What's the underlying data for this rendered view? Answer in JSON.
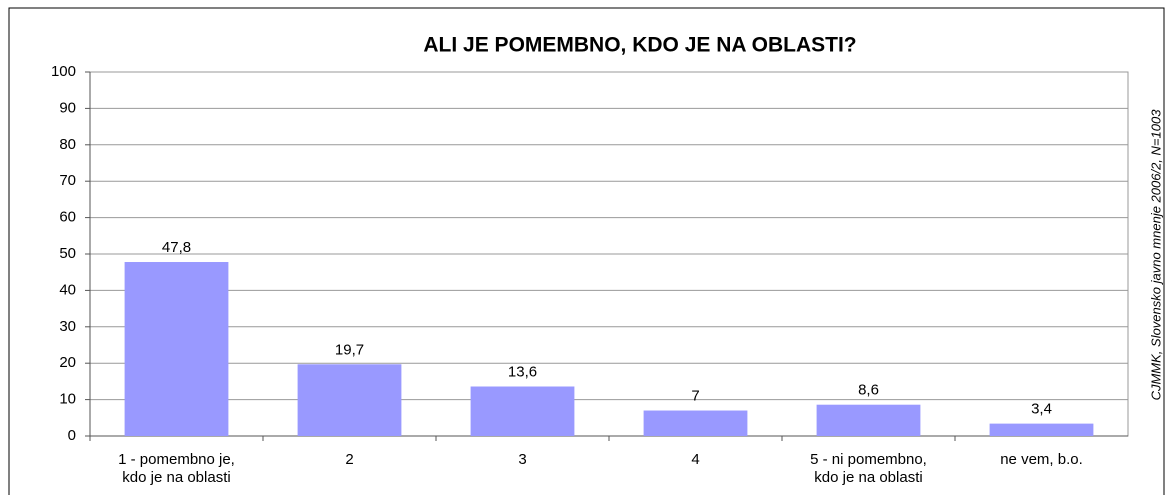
{
  "chart_data": {
    "type": "bar",
    "title": "ALI JE POMEMBNO, KDO JE NA OBLASTI?",
    "categories": [
      "1 - pomembno je, kdo je na oblasti",
      "2",
      "3",
      "4",
      "5 - ni pomembno, kdo je na oblasti",
      "ne vem, b.o."
    ],
    "values": [
      47.8,
      19.7,
      13.6,
      7,
      8.6,
      3.4
    ],
    "value_labels": [
      "47,8",
      "19,7",
      "13,6",
      "7",
      "8,6",
      "3,4"
    ],
    "color": "#9999ff",
    "ylim": [
      0,
      100
    ],
    "yticks": [
      0,
      10,
      20,
      30,
      40,
      50,
      60,
      70,
      80,
      90,
      100
    ],
    "grid": true,
    "annotation": "CJMMK, Slovensko javno mnenje 2006/2, N=1003"
  }
}
